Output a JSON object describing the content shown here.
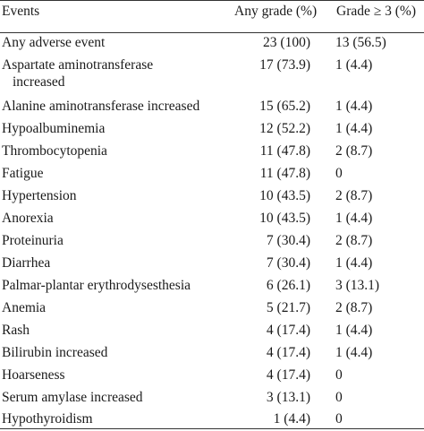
{
  "table": {
    "headers": {
      "events": "Events",
      "any_grade": "Any grade (%)",
      "grade_ge3": "Grade ≥ 3 (%)"
    },
    "rows": [
      {
        "event": "Any adverse event",
        "any_grade": "23 (100)",
        "grade_ge3": "13 (56.5)"
      },
      {
        "event": "Aspartate aminotransferase",
        "event_line2": "increased",
        "any_grade": "17 (73.9)",
        "grade_ge3": "1 (4.4)"
      },
      {
        "event": "Alanine aminotransferase increased",
        "any_grade": "15 (65.2)",
        "grade_ge3": "1 (4.4)"
      },
      {
        "event": "Hypoalbuminemia",
        "any_grade": "12 (52.2)",
        "grade_ge3": "1 (4.4)"
      },
      {
        "event": "Thrombocytopenia",
        "any_grade": "11 (47.8)",
        "grade_ge3": "2 (8.7)"
      },
      {
        "event": "Fatigue",
        "any_grade": "11 (47.8)",
        "grade_ge3": "0"
      },
      {
        "event": "Hypertension",
        "any_grade": "10 (43.5)",
        "grade_ge3": "2 (8.7)"
      },
      {
        "event": "Anorexia",
        "any_grade": "10 (43.5)",
        "grade_ge3": "1 (4.4)"
      },
      {
        "event": "Proteinuria",
        "any_grade": "7 (30.4)",
        "grade_ge3": "2 (8.7)"
      },
      {
        "event": "Diarrhea",
        "any_grade": "7 (30.4)",
        "grade_ge3": "1 (4.4)"
      },
      {
        "event": "Palmar-plantar erythrodysesthesia",
        "any_grade": "6 (26.1)",
        "grade_ge3": "3 (13.1)"
      },
      {
        "event": "Anemia",
        "any_grade": "5 (21.7)",
        "grade_ge3": "2 (8.7)"
      },
      {
        "event": "Rash",
        "any_grade": "4 (17.4)",
        "grade_ge3": "1 (4.4)"
      },
      {
        "event": "Bilirubin increased",
        "any_grade": "4 (17.4)",
        "grade_ge3": "1 (4.4)"
      },
      {
        "event": "Hoarseness",
        "any_grade": "4 (17.4)",
        "grade_ge3": "0"
      },
      {
        "event": "Serum amylase increased",
        "any_grade": "3 (13.1)",
        "grade_ge3": "0"
      },
      {
        "event": "Hypothyroidism",
        "any_grade": "1 (4.4)",
        "grade_ge3": "0"
      }
    ]
  }
}
